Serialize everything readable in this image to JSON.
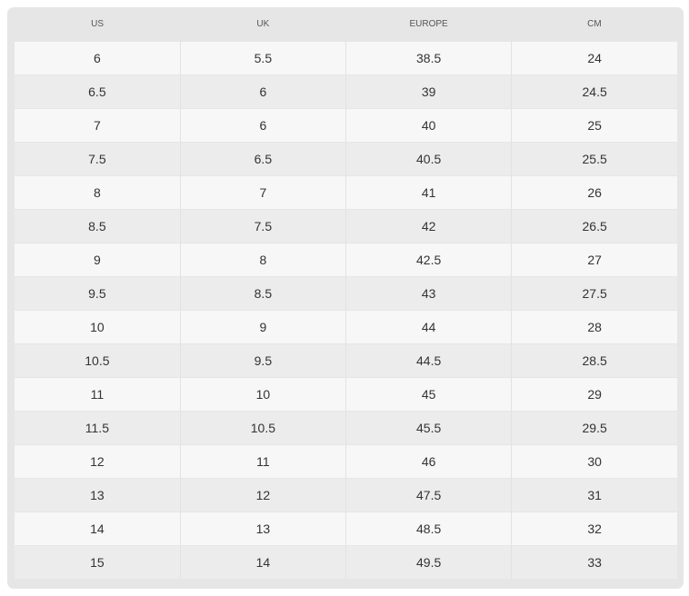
{
  "headers": [
    "US",
    "UK",
    "EUROPE",
    "CM"
  ],
  "rows": [
    [
      "6",
      "5.5",
      "38.5",
      "24"
    ],
    [
      "6.5",
      "6",
      "39",
      "24.5"
    ],
    [
      "7",
      "6",
      "40",
      "25"
    ],
    [
      "7.5",
      "6.5",
      "40.5",
      "25.5"
    ],
    [
      "8",
      "7",
      "41",
      "26"
    ],
    [
      "8.5",
      "7.5",
      "42",
      "26.5"
    ],
    [
      "9",
      "8",
      "42.5",
      "27"
    ],
    [
      "9.5",
      "8.5",
      "43",
      "27.5"
    ],
    [
      "10",
      "9",
      "44",
      "28"
    ],
    [
      "10.5",
      "9.5",
      "44.5",
      "28.5"
    ],
    [
      "11",
      "10",
      "45",
      "29"
    ],
    [
      "11.5",
      "10.5",
      "45.5",
      "29.5"
    ],
    [
      "12",
      "11",
      "46",
      "30"
    ],
    [
      "13",
      "12",
      "47.5",
      "31"
    ],
    [
      "14",
      "13",
      "48.5",
      "32"
    ],
    [
      "15",
      "14",
      "49.5",
      "33"
    ]
  ]
}
